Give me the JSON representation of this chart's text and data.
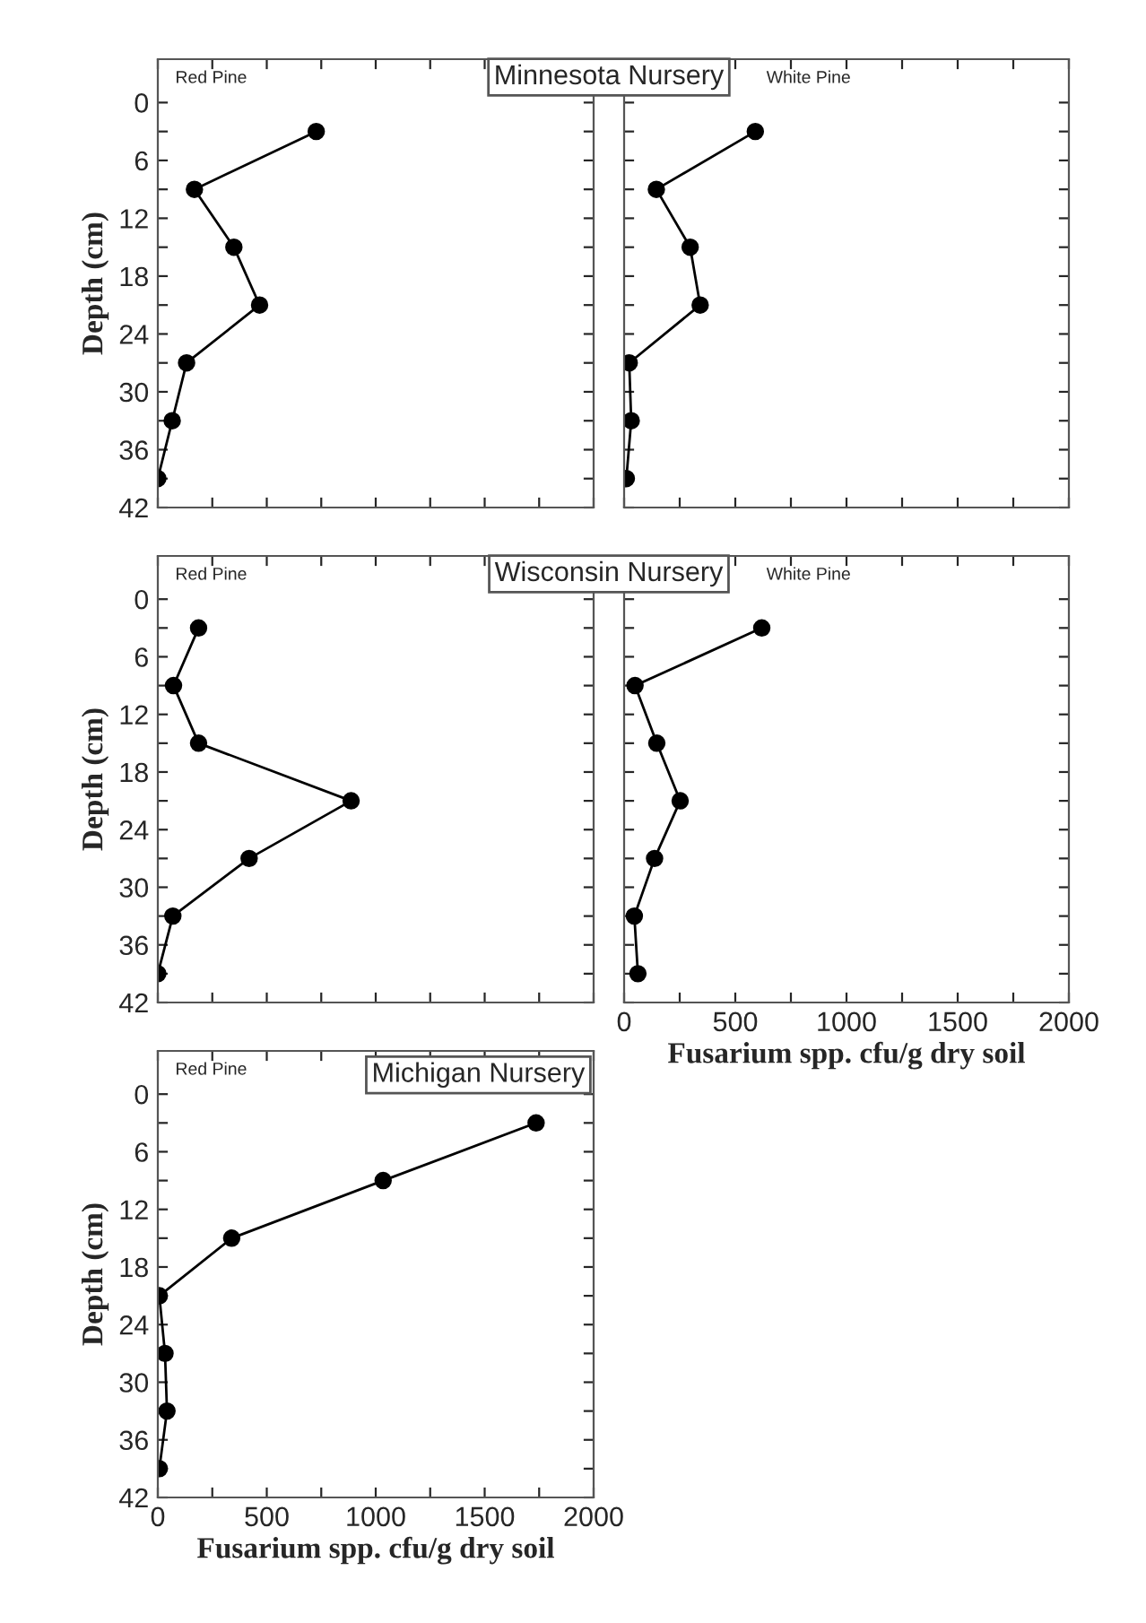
{
  "chart_data": [
    {
      "type": "line",
      "title": "Minnesota Nursery",
      "annotations": [
        "Red Pine"
      ],
      "ylabel": "Depth (cm)",
      "x": [
        727,
        168,
        349,
        467,
        132,
        66,
        0
      ],
      "series": [
        {
          "color": "#000000",
          "values": [
            3,
            9,
            15,
            21,
            27,
            33,
            39
          ]
        }
      ],
      "xlim": [
        0,
        2000
      ],
      "ylim": [
        42,
        -4.5
      ],
      "xticks": [
        {
          "value": 0,
          "label": null
        },
        {
          "value": 250,
          "label": null
        },
        {
          "value": 500,
          "label": null
        },
        {
          "value": 750,
          "label": null
        },
        {
          "value": 1000,
          "label": null
        },
        {
          "value": 1250,
          "label": null
        },
        {
          "value": 1500,
          "label": null
        },
        {
          "value": 1750,
          "label": null
        },
        {
          "value": 2000,
          "label": null
        }
      ],
      "yticks": [
        0,
        {
          "value": 3,
          "label": null
        },
        6,
        {
          "value": 9,
          "label": null
        },
        12,
        {
          "value": 15,
          "label": null
        },
        18,
        {
          "value": 21,
          "label": null
        },
        24,
        {
          "value": 27,
          "label": null
        },
        30,
        {
          "value": 33,
          "label": null
        },
        36,
        {
          "value": 39,
          "label": null
        },
        42
      ],
      "tick_labels": "y",
      "marker": "circle",
      "line_style": "solid",
      "grid": false,
      "legend": false
    },
    {
      "type": "line",
      "annotations": [
        "White Pine"
      ],
      "x": [
        590,
        145,
        297,
        342,
        23,
        32,
        10
      ],
      "series": [
        {
          "color": "#000000",
          "values": [
            3,
            9,
            15,
            21,
            27,
            33,
            39
          ]
        }
      ],
      "xlim": [
        0,
        2000
      ],
      "ylim": [
        42,
        -4.5
      ],
      "xticks": [
        {
          "value": 0,
          "label": null
        },
        {
          "value": 250,
          "label": null
        },
        {
          "value": 500,
          "label": null
        },
        {
          "value": 750,
          "label": null
        },
        {
          "value": 1000,
          "label": null
        },
        {
          "value": 1250,
          "label": null
        },
        {
          "value": 1500,
          "label": null
        },
        {
          "value": 1750,
          "label": null
        },
        {
          "value": 2000,
          "label": null
        }
      ],
      "yticks": [
        {
          "value": 0,
          "label": null
        },
        {
          "value": 3,
          "label": null
        },
        {
          "value": 6,
          "label": null
        },
        {
          "value": 9,
          "label": null
        },
        {
          "value": 12,
          "label": null
        },
        {
          "value": 15,
          "label": null
        },
        {
          "value": 18,
          "label": null
        },
        {
          "value": 21,
          "label": null
        },
        {
          "value": 24,
          "label": null
        },
        {
          "value": 27,
          "label": null
        },
        {
          "value": 30,
          "label": null
        },
        {
          "value": 33,
          "label": null
        },
        {
          "value": 36,
          "label": null
        },
        {
          "value": 39,
          "label": null
        },
        {
          "value": 42,
          "label": null
        }
      ],
      "tick_labels": false,
      "marker": "circle",
      "line_style": "solid",
      "grid": false,
      "legend": false
    },
    {
      "type": "line",
      "title": "Wisconsin Nursery",
      "annotations": [
        "Red Pine"
      ],
      "ylabel": "Depth (cm)",
      "x": [
        187,
        72,
        187,
        887,
        419,
        69,
        0
      ],
      "series": [
        {
          "color": "#000000",
          "values": [
            3,
            9,
            15,
            21,
            27,
            33,
            39
          ]
        }
      ],
      "xlim": [
        0,
        2000
      ],
      "ylim": [
        42,
        -4.5
      ],
      "xticks": [
        {
          "value": 0,
          "label": null
        },
        {
          "value": 250,
          "label": null
        },
        {
          "value": 500,
          "label": null
        },
        {
          "value": 750,
          "label": null
        },
        {
          "value": 1000,
          "label": null
        },
        {
          "value": 1250,
          "label": null
        },
        {
          "value": 1500,
          "label": null
        },
        {
          "value": 1750,
          "label": null
        },
        {
          "value": 2000,
          "label": null
        }
      ],
      "yticks": [
        0,
        {
          "value": 3,
          "label": null
        },
        6,
        {
          "value": 9,
          "label": null
        },
        12,
        {
          "value": 15,
          "label": null
        },
        18,
        {
          "value": 21,
          "label": null
        },
        24,
        {
          "value": 27,
          "label": null
        },
        30,
        {
          "value": 33,
          "label": null
        },
        36,
        {
          "value": 39,
          "label": null
        },
        42
      ],
      "tick_labels": "y",
      "marker": "circle",
      "line_style": "solid",
      "grid": false,
      "legend": false
    },
    {
      "type": "line",
      "annotations": [
        "White Pine"
      ],
      "xlabel": "Fusarium spp. cfu/g dry soil",
      "x": [
        619,
        49,
        147,
        252,
        137,
        46,
        62
      ],
      "series": [
        {
          "color": "#000000",
          "values": [
            3,
            9,
            15,
            21,
            27,
            33,
            39
          ]
        }
      ],
      "xlim": [
        0,
        2000
      ],
      "ylim": [
        42,
        -4.5
      ],
      "xticks": [
        0,
        {
          "value": 250,
          "label": null
        },
        500,
        {
          "value": 750,
          "label": null
        },
        1000,
        {
          "value": 1250,
          "label": null
        },
        1500,
        {
          "value": 1750,
          "label": null
        },
        2000
      ],
      "yticks": [
        {
          "value": 0,
          "label": null
        },
        {
          "value": 3,
          "label": null
        },
        {
          "value": 6,
          "label": null
        },
        {
          "value": 9,
          "label": null
        },
        {
          "value": 12,
          "label": null
        },
        {
          "value": 15,
          "label": null
        },
        {
          "value": 18,
          "label": null
        },
        {
          "value": 21,
          "label": null
        },
        {
          "value": 24,
          "label": null
        },
        {
          "value": 27,
          "label": null
        },
        {
          "value": 30,
          "label": null
        },
        {
          "value": 33,
          "label": null
        },
        {
          "value": 36,
          "label": null
        },
        {
          "value": 39,
          "label": null
        },
        {
          "value": 42,
          "label": null
        }
      ],
      "tick_labels": "x",
      "marker": "circle",
      "line_style": "solid",
      "grid": false,
      "legend": false
    },
    {
      "type": "line",
      "title": "Michigan Nursery",
      "annotations": [
        "Red Pine"
      ],
      "ylabel": "Depth (cm)",
      "xlabel": "Fusarium spp. cfu/g dry soil",
      "x": [
        1736,
        1034,
        339,
        7,
        33,
        42,
        7
      ],
      "series": [
        {
          "color": "#000000",
          "values": [
            3,
            9,
            15,
            21,
            27,
            33,
            39
          ]
        }
      ],
      "xlim": [
        0,
        2000
      ],
      "ylim": [
        42,
        -4.5
      ],
      "xticks": [
        0,
        {
          "value": 250,
          "label": null
        },
        500,
        {
          "value": 750,
          "label": null
        },
        1000,
        {
          "value": 1250,
          "label": null
        },
        1500,
        {
          "value": 1750,
          "label": null
        },
        2000
      ],
      "yticks": [
        0,
        {
          "value": 3,
          "label": null
        },
        6,
        {
          "value": 9,
          "label": null
        },
        12,
        {
          "value": 15,
          "label": null
        },
        18,
        {
          "value": 21,
          "label": null
        },
        24,
        {
          "value": 27,
          "label": null
        },
        30,
        {
          "value": 33,
          "label": null
        },
        36,
        {
          "value": 39,
          "label": null
        },
        42
      ],
      "marker": "circle",
      "line_style": "solid",
      "grid": false,
      "legend": false
    }
  ]
}
